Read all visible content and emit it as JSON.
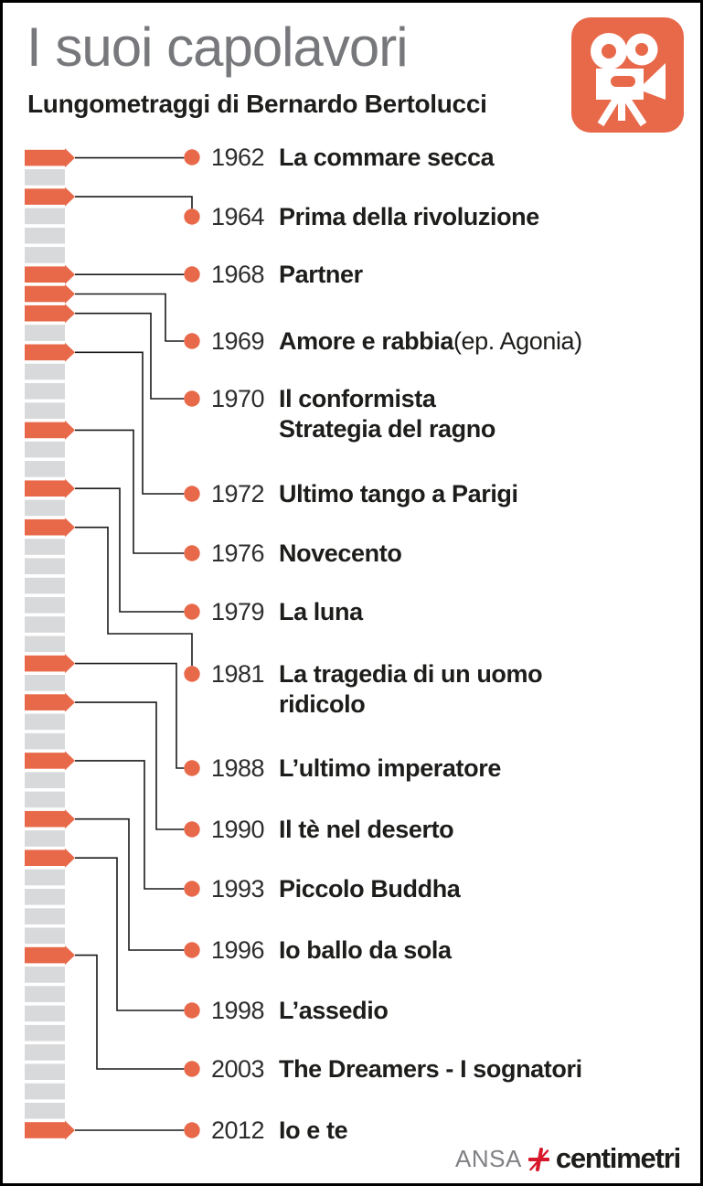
{
  "header": {
    "title": "I suoi capolavori",
    "subtitle": "Lungometraggi di Bernardo Bertolucci"
  },
  "timeline": {
    "start_year": "1962",
    "end_year": "2012"
  },
  "films": [
    {
      "year": "1962",
      "title": "La commare secca"
    },
    {
      "year": "1964",
      "title": "Prima della rivoluzione"
    },
    {
      "year": "1968",
      "title": "Partner"
    },
    {
      "year": "1969",
      "title": "Amore e rabbia",
      "suffix": " (ep. Agonia)"
    },
    {
      "year": "1970",
      "title": "Il conformista\nStrategia del ragno"
    },
    {
      "year": "1972",
      "title": "Ultimo tango a Parigi"
    },
    {
      "year": "1976",
      "title": "Novecento"
    },
    {
      "year": "1979",
      "title": "La luna"
    },
    {
      "year": "1981",
      "title": "La tragedia di un uomo\nridicolo"
    },
    {
      "year": "1988",
      "title": "L’ultimo imperatore"
    },
    {
      "year": "1990",
      "title": "Il tè nel deserto"
    },
    {
      "year": "1993",
      "title": "Piccolo Buddha"
    },
    {
      "year": "1996",
      "title": "Io ballo da sola"
    },
    {
      "year": "1998",
      "title": "L’assedio"
    },
    {
      "year": "2003",
      "title": "The Dreamers - I sognatori"
    },
    {
      "year": "2012",
      "title": "Io e te"
    }
  ],
  "footer": {
    "agency": "ANSA",
    "brand": "centimetri"
  },
  "colors": {
    "accent": "#E8694A",
    "segment_gray": "#D8D9DA",
    "title_gray": "#77787B",
    "text_black": "#1D1D1B",
    "year_gray": "#2E2E2E",
    "line_black": "#1A1A1A",
    "brand_red": "#D7182A",
    "agency_gray": "#808184"
  }
}
